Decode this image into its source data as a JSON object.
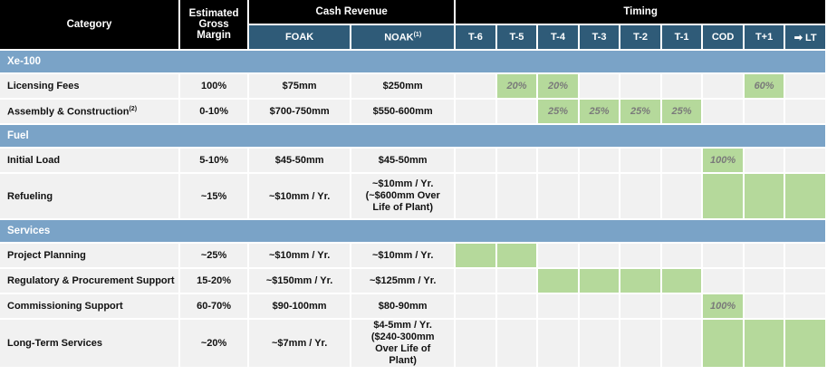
{
  "header": {
    "category": "Category",
    "margin": "Estimated Gross Margin",
    "cash_revenue": "Cash Revenue",
    "foak": "FOAK",
    "noak": "NOAK",
    "noak_note": "(1)",
    "timing": "Timing",
    "timing_cols": [
      "T-6",
      "T-5",
      "T-4",
      "T-3",
      "T-2",
      "T-1",
      "COD",
      "T+1",
      "➡ LT"
    ]
  },
  "colors": {
    "header": "#000000",
    "subheader": "#2f5b78",
    "section": "#7aa3c7",
    "cell": "#f1f1f1",
    "highlight": "#b5d99b"
  },
  "sections": [
    {
      "title": "Xe-100",
      "rows": [
        {
          "category": "Licensing Fees",
          "note": "",
          "margin": "100%",
          "foak": "$75mm",
          "noak": "$250mm",
          "timing": [
            null,
            "20%",
            "20%",
            null,
            null,
            null,
            null,
            "60%",
            null
          ]
        },
        {
          "category": "Assembly & Construction",
          "note": "(2)",
          "margin": "0-10%",
          "foak": "$700-750mm",
          "noak": "$550-600mm",
          "timing": [
            null,
            null,
            "25%",
            "25%",
            "25%",
            "25%",
            null,
            null,
            null
          ]
        }
      ]
    },
    {
      "title": "Fuel",
      "rows": [
        {
          "category": "Initial Load",
          "note": "",
          "margin": "5-10%",
          "foak": "$45-50mm",
          "noak": "$45-50mm",
          "timing": [
            null,
            null,
            null,
            null,
            null,
            null,
            "100%",
            null,
            null
          ]
        },
        {
          "category": "Refueling",
          "note": "",
          "margin": "~15%",
          "foak": "~$10mm / Yr.",
          "noak": "~$10mm / Yr. (~$600mm Over Life of Plant)",
          "tall": true,
          "timing": [
            null,
            null,
            null,
            null,
            null,
            null,
            "",
            "",
            " "
          ]
        }
      ]
    },
    {
      "title": "Services",
      "rows": [
        {
          "category": "Project Planning",
          "note": "",
          "margin": "~25%",
          "foak": "~$10mm / Yr.",
          "noak": "~$10mm / Yr.",
          "timing": [
            "",
            "",
            null,
            null,
            null,
            null,
            null,
            null,
            null
          ]
        },
        {
          "category": "Regulatory & Procurement Support",
          "note": "",
          "margin": "15-20%",
          "foak": "~$150mm / Yr.",
          "noak": "~$125mm / Yr.",
          "timing": [
            null,
            null,
            "",
            "",
            "",
            "",
            null,
            null,
            null
          ]
        },
        {
          "category": "Commissioning Support",
          "note": "",
          "margin": "60-70%",
          "foak": "$90-100mm",
          "noak": "$80-90mm",
          "timing": [
            null,
            null,
            null,
            null,
            null,
            null,
            "100%",
            null,
            null
          ]
        },
        {
          "category": "Long-Term Services",
          "note": "",
          "margin": "~20%",
          "foak": "~$7mm / Yr.",
          "noak": "$4-5mm / Yr. ($240-300mm Over Life of Plant)",
          "tall": true,
          "timing": [
            null,
            null,
            null,
            null,
            null,
            null,
            "",
            "",
            ""
          ]
        }
      ]
    }
  ]
}
